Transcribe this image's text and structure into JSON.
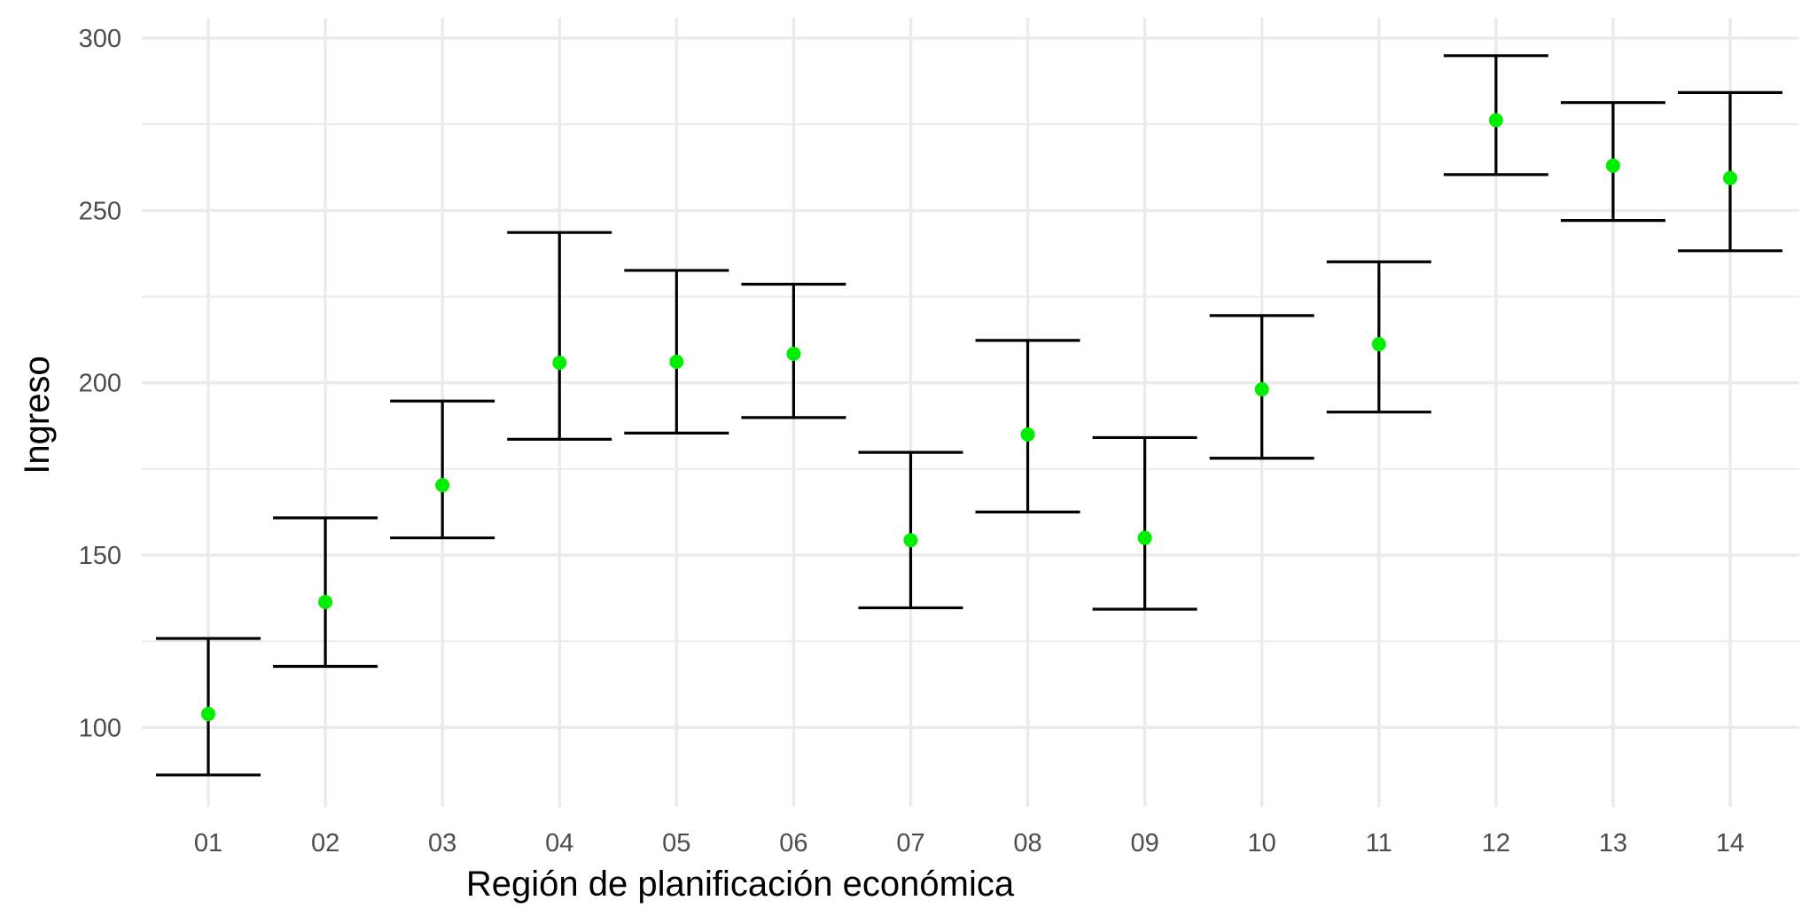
{
  "chart_data": {
    "type": "scatter",
    "title": "",
    "xlabel": "Región de planificación económica",
    "ylabel": "Ingreso",
    "ylim": [
      75,
      305
    ],
    "yticks": [
      100,
      150,
      200,
      250,
      300
    ],
    "grid": true,
    "legend": "none",
    "colors": {
      "point": "#00ee00",
      "errorbar": "#000000",
      "grid": "#ebebeb"
    },
    "categories": [
      "01",
      "02",
      "03",
      "04",
      "05",
      "06",
      "07",
      "08",
      "09",
      "10",
      "11",
      "12",
      "13",
      "14"
    ],
    "series": [
      {
        "values": [
          103.9,
          136.4,
          170.3,
          205.8,
          206.1,
          208.4,
          154.3,
          185.0,
          155.0,
          198.1,
          211.2,
          276.2,
          263.0,
          259.4
        ],
        "lower": [
          86.2,
          117.7,
          155.0,
          183.6,
          185.4,
          189.9,
          134.7,
          162.5,
          134.3,
          178.1,
          191.5,
          260.4,
          247.1,
          238.3
        ],
        "upper": [
          125.8,
          160.8,
          194.7,
          243.6,
          232.6,
          228.6,
          179.8,
          212.3,
          184.1,
          219.5,
          235.1,
          294.9,
          281.3,
          284.2
        ]
      }
    ]
  }
}
